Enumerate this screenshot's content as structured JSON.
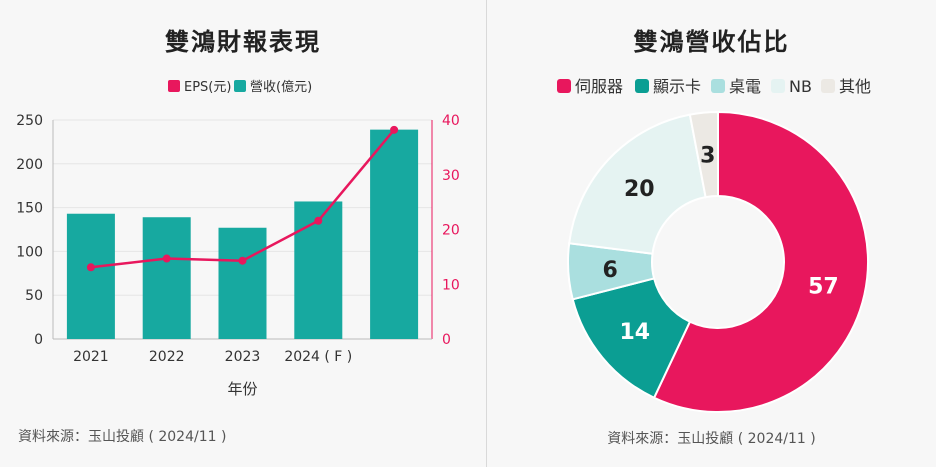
{
  "left": {
    "title": "雙鴻財報表現",
    "source": "資料來源：玉山投顧 ( 2024/11 )"
  },
  "right": {
    "title": "雙鴻營收佔比",
    "source": "資料來源：玉山投顧 ( 2024/11 )"
  },
  "colors": {
    "pink": "#e8175d",
    "teal": "#17a9a0",
    "dark_teal": "#0b9e93",
    "light_teal": "#aadfdf",
    "pale": "#e5f3f2",
    "beige": "#ece9e4"
  },
  "chart_data": [
    {
      "type": "bar",
      "xlabel": "年份",
      "categories": [
        "2021",
        "2022",
        "2023",
        "2024 ( F )",
        ""
      ],
      "yticks_left": [
        0,
        50,
        100,
        150,
        200,
        250
      ],
      "yticks_right": [
        0,
        10,
        20,
        30,
        40
      ],
      "ylim": [
        0,
        250
      ],
      "ylim_right": [
        0,
        40
      ],
      "legend": [
        "EPS(元)",
        "營收(億元)"
      ],
      "series": [
        {
          "name": "營收(億元)",
          "type": "bar",
          "axis": "left",
          "values": [
            143,
            139,
            127,
            157,
            239
          ]
        },
        {
          "name": "EPS(元)",
          "type": "line",
          "axis": "right",
          "values": [
            13.1,
            14.7,
            14.3,
            21.6,
            38.2
          ]
        }
      ]
    },
    {
      "type": "pie",
      "legend": [
        "伺服器",
        "顯示卡",
        "桌電",
        "NB",
        "其他"
      ],
      "labels": [
        "伺服器",
        "顯示卡",
        "桌電",
        "NB",
        "其他"
      ],
      "values": [
        57,
        14,
        6,
        20,
        3
      ],
      "colors": [
        "#e8175d",
        "#0b9e93",
        "#aadfdf",
        "#e5f3f2",
        "#ece9e4"
      ],
      "label_colors": [
        "#ffffff",
        "#ffffff",
        "#222222",
        "#222222",
        "#222222"
      ]
    }
  ]
}
